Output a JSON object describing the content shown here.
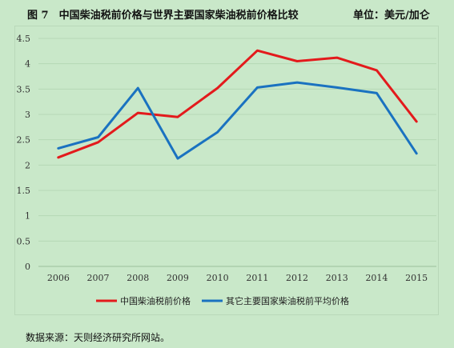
{
  "header": {
    "title": "图 7　中国柴油税前价格与世界主要国家柴油税前价格比较",
    "unit": "单位：美元/加仑"
  },
  "source_note": "数据来源：天则经济研究所网站。",
  "chart_data": {
    "type": "line",
    "x": [
      "2006",
      "2007",
      "2008",
      "2009",
      "2010",
      "2011",
      "2012",
      "2013",
      "2014",
      "2015"
    ],
    "ylim": [
      0,
      4.5
    ],
    "yticks": [
      0,
      0.5,
      1,
      1.5,
      2,
      2.5,
      3,
      3.5,
      4,
      4.5
    ],
    "ytick_labels": [
      "0",
      "0.5",
      "1",
      "1.5",
      "2",
      "2.5",
      "3",
      "3.5",
      "4",
      "4.5"
    ],
    "grid": true,
    "legend_position": "bottom",
    "series": [
      {
        "name": "中国柴油税前价格",
        "color": "#e31a1c",
        "values": [
          2.15,
          2.45,
          3.03,
          2.95,
          3.52,
          4.26,
          4.05,
          4.12,
          3.87,
          2.86
        ]
      },
      {
        "name": "其它主要国家柴油税前平均价格",
        "color": "#1a72c0",
        "values": [
          2.33,
          2.55,
          3.52,
          2.13,
          2.65,
          3.53,
          3.63,
          3.53,
          3.42,
          2.23
        ]
      }
    ]
  }
}
